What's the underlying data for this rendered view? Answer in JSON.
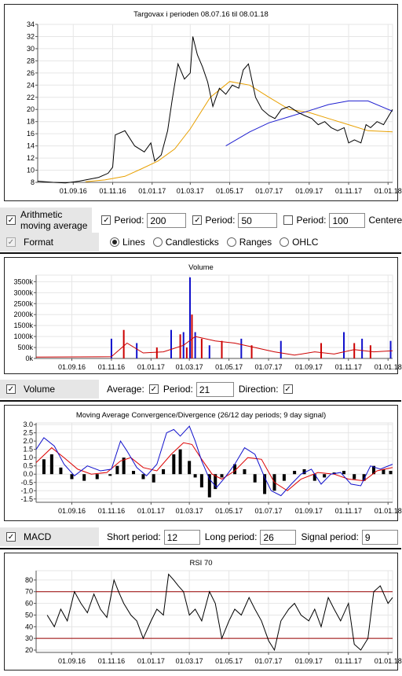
{
  "chart_data": [
    {
      "type": "line",
      "title": "Targovax i perioden 08.07.16 til 08.01.18",
      "x_tick_labels": [
        "01.09.16",
        "01.11.16",
        "01.01.17",
        "01.03.17",
        "01.05.17",
        "01.07.17",
        "01.09.17",
        "01.11.17",
        "01.01.18"
      ],
      "ylim": [
        8,
        34
      ],
      "y_ticks": [
        8,
        10,
        12,
        14,
        16,
        18,
        20,
        22,
        24,
        26,
        28,
        30,
        32,
        34
      ],
      "grid": true,
      "series": [
        {
          "role": "price",
          "color": "#000000",
          "x": [
            "2016-07-08",
            "2016-08-01",
            "2016-08-20",
            "2016-09-10",
            "2016-09-25",
            "2016-10-10",
            "2016-10-25",
            "2016-11-01",
            "2016-11-05",
            "2016-11-20",
            "2016-12-05",
            "2016-12-20",
            "2016-12-30",
            "2017-01-05",
            "2017-01-15",
            "2017-01-25",
            "2017-02-01",
            "2017-02-10",
            "2017-02-20",
            "2017-03-01",
            "2017-03-05",
            "2017-03-12",
            "2017-03-20",
            "2017-03-28",
            "2017-04-05",
            "2017-04-15",
            "2017-04-25",
            "2017-05-05",
            "2017-05-15",
            "2017-05-22",
            "2017-05-30",
            "2017-06-10",
            "2017-06-20",
            "2017-07-01",
            "2017-07-10",
            "2017-07-20",
            "2017-08-01",
            "2017-08-15",
            "2017-08-25",
            "2017-09-05",
            "2017-09-15",
            "2017-09-25",
            "2017-10-05",
            "2017-10-15",
            "2017-10-25",
            "2017-11-01",
            "2017-11-10",
            "2017-11-20",
            "2017-11-28",
            "2017-12-05",
            "2017-12-15",
            "2017-12-25",
            "2018-01-08"
          ],
          "y": [
            8.2,
            8,
            7.9,
            8.2,
            8.5,
            8.8,
            9.5,
            10.5,
            15.8,
            16.5,
            14,
            13,
            14.5,
            11.5,
            12.5,
            16.5,
            21.5,
            27.5,
            25,
            26,
            32,
            29,
            27,
            24.5,
            20.5,
            23.5,
            22.5,
            24,
            23.5,
            26.5,
            27.5,
            22,
            20,
            19,
            18.5,
            20,
            20.5,
            19.5,
            19,
            18.5,
            17.5,
            18,
            17,
            16.5,
            17,
            14.5,
            15,
            14.5,
            17.5,
            17,
            18,
            17.5,
            20
          ]
        },
        {
          "role": "moving-average-200",
          "color": "#1f1fd0",
          "x": [
            "2017-04-25",
            "2017-06-01",
            "2017-07-01",
            "2017-08-01",
            "2017-09-01",
            "2017-10-01",
            "2017-11-01",
            "2017-12-01",
            "2018-01-08"
          ],
          "y": [
            14,
            16.3,
            17.8,
            18.8,
            19.8,
            20.8,
            21.4,
            21.4,
            19.7
          ]
        },
        {
          "role": "moving-average-50",
          "color": "#e8a000",
          "x": [
            "2016-09-20",
            "2016-10-20",
            "2016-11-20",
            "2016-12-15",
            "2017-01-10",
            "2017-02-05",
            "2017-03-01",
            "2017-04-01",
            "2017-05-01",
            "2017-06-01",
            "2017-07-01",
            "2017-08-01",
            "2017-09-01",
            "2017-10-01",
            "2017-11-01",
            "2017-12-01",
            "2018-01-08"
          ],
          "y": [
            8.1,
            8.4,
            9,
            10.2,
            11.5,
            13.5,
            16.8,
            22,
            24.6,
            24,
            22,
            20,
            19.5,
            18.5,
            17.5,
            16.5,
            16.3
          ]
        }
      ]
    },
    {
      "type": "bar",
      "title": "Volume",
      "x_tick_labels": [
        "01.09.16",
        "01.11.16",
        "01.01.17",
        "01.03.17",
        "01.05.17",
        "01.07.17",
        "01.09.17",
        "01.11.17",
        "01.01.18"
      ],
      "y_tick_labels": [
        "0k",
        "500k",
        "1000k",
        "1500k",
        "2000k",
        "2500k",
        "3000k",
        "3500k"
      ],
      "ylim": [
        0,
        3800
      ],
      "unit": "k",
      "grid": true,
      "bars": {
        "x": [
          "2016-11-01",
          "2016-11-20",
          "2016-12-10",
          "2017-01-10",
          "2017-02-01",
          "2017-02-15",
          "2017-02-20",
          "2017-02-25",
          "2017-03-02",
          "2017-03-05",
          "2017-03-10",
          "2017-03-20",
          "2017-04-01",
          "2017-04-20",
          "2017-05-20",
          "2017-06-05",
          "2017-07-20",
          "2017-09-20",
          "2017-10-25",
          "2017-11-10",
          "2017-11-22",
          "2017-12-05",
          "2018-01-05"
        ],
        "y": [
          900,
          1300,
          700,
          500,
          1300,
          1100,
          1200,
          500,
          3700,
          2000,
          1200,
          900,
          600,
          800,
          900,
          600,
          800,
          700,
          1200,
          700,
          900,
          600,
          800
        ]
      },
      "series": [
        {
          "role": "average-21",
          "color": "#cc0000",
          "x": [
            "2016-07-08",
            "2016-11-01",
            "2016-11-25",
            "2016-12-20",
            "2017-01-20",
            "2017-02-20",
            "2017-03-10",
            "2017-04-10",
            "2017-05-10",
            "2017-06-10",
            "2017-07-10",
            "2017-08-10",
            "2017-09-10",
            "2017-10-10",
            "2017-11-10",
            "2017-12-10",
            "2018-01-08"
          ],
          "y": [
            60,
            80,
            700,
            250,
            300,
            600,
            1000,
            800,
            700,
            500,
            300,
            150,
            300,
            200,
            400,
            300,
            350
          ]
        }
      ]
    },
    {
      "type": "line",
      "title": "Moving Average Convergence/Divergence (26/12 day periods; 9 day signal)",
      "x_tick_labels": [
        "01.09.16",
        "01.11.16",
        "01.01.17",
        "01.03.17",
        "01.05.17",
        "01.07.17",
        "01.09.17",
        "01.11.17",
        "01.01.18"
      ],
      "y_tick_labels": [
        "-1.5",
        "-1.0",
        "-0.5",
        "0.0",
        "0.5",
        "1.0",
        "1.5",
        "2.0",
        "2.5",
        "3.0"
      ],
      "ylim": [
        -1.7,
        3.1
      ],
      "grid": true,
      "histogram": {
        "x": [
          "2016-07-20",
          "2016-08-01",
          "2016-08-15",
          "2016-09-01",
          "2016-09-20",
          "2016-10-10",
          "2016-10-30",
          "2016-11-10",
          "2016-11-20",
          "2016-12-05",
          "2016-12-20",
          "2017-01-05",
          "2017-01-20",
          "2017-02-05",
          "2017-02-15",
          "2017-03-01",
          "2017-03-10",
          "2017-03-20",
          "2017-04-01",
          "2017-04-10",
          "2017-04-20",
          "2017-05-10",
          "2017-05-25",
          "2017-06-10",
          "2017-06-25",
          "2017-07-10",
          "2017-07-25",
          "2017-08-10",
          "2017-08-25",
          "2017-09-10",
          "2017-09-25",
          "2017-10-10",
          "2017-10-25",
          "2017-11-10",
          "2017-11-25",
          "2017-12-10",
          "2017-12-25",
          "2018-01-05"
        ],
        "y": [
          0.9,
          1.2,
          0.4,
          -0.3,
          -0.4,
          -0.3,
          -0.1,
          0.5,
          1.0,
          0.2,
          -0.3,
          -0.5,
          0.3,
          1.2,
          1.5,
          0.8,
          -0.2,
          -0.8,
          -1.4,
          -0.9,
          -0.2,
          0.6,
          0.3,
          -0.5,
          -1.2,
          -1.0,
          -0.4,
          0.2,
          0.3,
          -0.4,
          -0.2,
          0.1,
          0.2,
          -0.3,
          -0.4,
          0.5,
          0.3,
          0.2
        ]
      },
      "series": [
        {
          "role": "macd",
          "color": "#1010cc",
          "x": [
            "2016-07-08",
            "2016-07-20",
            "2016-08-05",
            "2016-08-20",
            "2016-09-05",
            "2016-09-25",
            "2016-10-15",
            "2016-11-01",
            "2016-11-15",
            "2016-11-25",
            "2016-12-10",
            "2016-12-25",
            "2017-01-10",
            "2017-01-25",
            "2017-02-05",
            "2017-02-15",
            "2017-03-01",
            "2017-03-10",
            "2017-03-20",
            "2017-04-01",
            "2017-04-12",
            "2017-04-25",
            "2017-05-10",
            "2017-05-25",
            "2017-06-10",
            "2017-06-25",
            "2017-07-05",
            "2017-07-20",
            "2017-08-05",
            "2017-08-20",
            "2017-09-05",
            "2017-09-20",
            "2017-10-05",
            "2017-10-20",
            "2017-11-05",
            "2017-11-20",
            "2017-12-05",
            "2017-12-20",
            "2018-01-08"
          ],
          "y": [
            1.5,
            2.2,
            1.7,
            0.6,
            -0.1,
            0.5,
            0.2,
            0.3,
            2.0,
            1.4,
            0.4,
            -0.1,
            0.6,
            2.5,
            2.7,
            2.3,
            2.9,
            2.0,
            0.8,
            -0.3,
            -0.8,
            -0.2,
            0.6,
            1.6,
            1.2,
            -0.2,
            -1.0,
            -1.3,
            -0.6,
            0.0,
            0.3,
            -0.6,
            0.0,
            0.1,
            -0.6,
            -0.7,
            0.5,
            0.3,
            0.6
          ]
        },
        {
          "role": "signal",
          "color": "#dd0000",
          "x": [
            "2016-07-08",
            "2016-08-01",
            "2016-08-20",
            "2016-09-10",
            "2016-10-01",
            "2016-10-25",
            "2016-11-15",
            "2016-12-01",
            "2016-12-20",
            "2017-01-10",
            "2017-02-01",
            "2017-02-20",
            "2017-03-05",
            "2017-03-20",
            "2017-04-05",
            "2017-04-20",
            "2017-05-10",
            "2017-05-30",
            "2017-06-20",
            "2017-07-10",
            "2017-07-30",
            "2017-08-20",
            "2017-09-15",
            "2017-10-10",
            "2017-11-01",
            "2017-11-25",
            "2017-12-15",
            "2018-01-08"
          ],
          "y": [
            0.7,
            1.6,
            1.0,
            0.3,
            0.0,
            0.1,
            0.8,
            1.0,
            0.4,
            0.2,
            1.2,
            1.9,
            1.8,
            0.9,
            0.0,
            -0.3,
            0.2,
            1.0,
            0.9,
            -0.5,
            -1.0,
            -0.3,
            0.1,
            0.0,
            -0.3,
            -0.4,
            0.2,
            0.4
          ]
        }
      ]
    },
    {
      "type": "line",
      "title": "RSI 70",
      "x_tick_labels": [
        "01.09.16",
        "01.11.16",
        "01.01.17",
        "01.03.17",
        "01.05.17",
        "01.07.17",
        "01.09.17",
        "01.11.17",
        "01.01.18"
      ],
      "y_tick_labels": [
        "20",
        "30",
        "40",
        "50",
        "60",
        "70",
        "80"
      ],
      "ylim": [
        18,
        88
      ],
      "reference_lines": [
        70,
        30
      ],
      "reference_color": "#990000",
      "grid": true,
      "series": [
        {
          "role": "rsi",
          "color": "#000000",
          "x": [
            "2016-07-25",
            "2016-08-05",
            "2016-08-15",
            "2016-08-25",
            "2016-09-05",
            "2016-09-15",
            "2016-09-25",
            "2016-10-05",
            "2016-10-15",
            "2016-10-25",
            "2016-11-05",
            "2016-11-12",
            "2016-11-20",
            "2016-12-01",
            "2016-12-10",
            "2016-12-20",
            "2017-01-01",
            "2017-01-10",
            "2017-01-20",
            "2017-01-28",
            "2017-02-05",
            "2017-02-12",
            "2017-02-20",
            "2017-03-01",
            "2017-03-10",
            "2017-03-20",
            "2017-04-01",
            "2017-04-10",
            "2017-04-20",
            "2017-05-01",
            "2017-05-10",
            "2017-05-20",
            "2017-06-01",
            "2017-06-10",
            "2017-06-20",
            "2017-07-01",
            "2017-07-10",
            "2017-07-20",
            "2017-08-01",
            "2017-08-10",
            "2017-08-20",
            "2017-09-01",
            "2017-09-10",
            "2017-09-20",
            "2017-10-01",
            "2017-10-10",
            "2017-10-20",
            "2017-11-01",
            "2017-11-10",
            "2017-11-20",
            "2017-12-01",
            "2017-12-10",
            "2017-12-20",
            "2018-01-01",
            "2018-01-08"
          ],
          "y": [
            50,
            40,
            55,
            45,
            70,
            60,
            52,
            68,
            55,
            48,
            80,
            70,
            60,
            50,
            45,
            30,
            45,
            55,
            50,
            85,
            80,
            75,
            70,
            50,
            55,
            45,
            70,
            60,
            30,
            45,
            55,
            50,
            65,
            55,
            45,
            28,
            20,
            45,
            55,
            60,
            50,
            45,
            55,
            40,
            65,
            55,
            45,
            60,
            25,
            20,
            30,
            70,
            75,
            60,
            65
          ]
        }
      ]
    }
  ],
  "controls": {
    "ma": {
      "label_line1": "Arithmetic",
      "label_line2": "moving average",
      "period1_label": "Period:",
      "period1_value": "200",
      "period2_label": "Period:",
      "period2_value": "50",
      "period3_label": "Period:",
      "period3_value": "100",
      "centered_label": "Centere"
    },
    "format": {
      "label": "Format",
      "options": [
        "Lines",
        "Candlesticks",
        "Ranges",
        "OHLC"
      ],
      "selected": "Lines"
    },
    "volume": {
      "label": "Volume",
      "average_label": "Average:",
      "period_label": "Period:",
      "period_value": "21",
      "direction_label": "Direction:"
    },
    "macd": {
      "label": "MACD",
      "short_label": "Short period:",
      "short_value": "12",
      "long_label": "Long period:",
      "long_value": "26",
      "signal_label": "Signal period:",
      "signal_value": "9"
    }
  }
}
